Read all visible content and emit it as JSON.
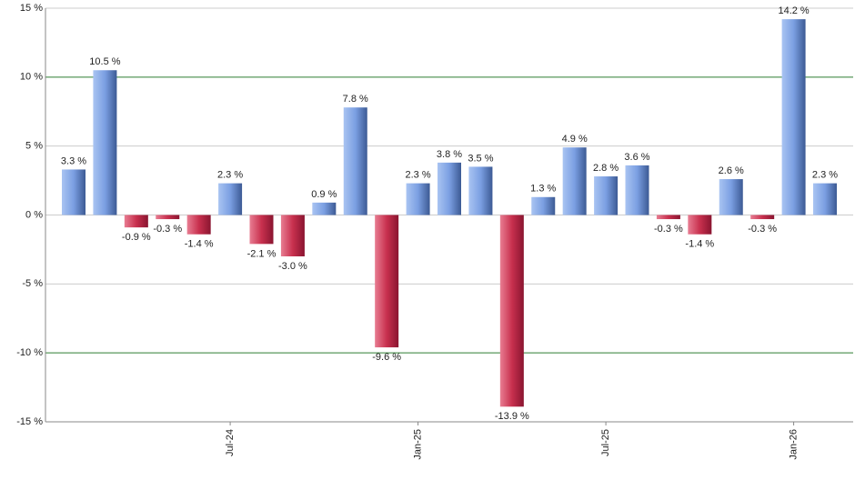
{
  "chart_data": {
    "type": "bar",
    "categories": [
      null,
      null,
      null,
      null,
      null,
      "Jul-24",
      null,
      null,
      null,
      null,
      null,
      "Jan-25",
      null,
      null,
      null,
      null,
      null,
      "Jul-25",
      null,
      null,
      null,
      null,
      null,
      "Jan-26",
      null
    ],
    "values": [
      3.3,
      10.5,
      -0.9,
      -0.3,
      -1.4,
      2.3,
      -2.1,
      -3.0,
      0.9,
      7.8,
      -9.6,
      2.3,
      3.8,
      3.5,
      -13.9,
      1.3,
      4.9,
      2.8,
      3.6,
      -0.3,
      -1.4,
      2.6,
      -0.3,
      14.2,
      2.3
    ],
    "value_labels": [
      "3.3 %",
      "10.5 %",
      "-0.9 %",
      "-0.3 %",
      "-1.4 %",
      "2.3 %",
      "-2.1 %",
      "-3.0 %",
      "0.9 %",
      "7.8 %",
      "-9.6 %",
      "2.3 %",
      "3.8 %",
      "3.5 %",
      "-13.9 %",
      "1.3 %",
      "4.9 %",
      "2.8 %",
      "3.6 %",
      "-0.3 %",
      "-1.4 %",
      "2.6 %",
      "-0.3 %",
      "14.2 %",
      "2.3 %"
    ],
    "positive_color": "#7b9fe2",
    "negative_color": "#c8304e",
    "ylim": [
      -15,
      15
    ],
    "yticks": [
      {
        "value": -15,
        "label": "-15 %"
      },
      {
        "value": -10,
        "label": "-10 %"
      },
      {
        "value": -5,
        "label": "-5 %"
      },
      {
        "value": 0,
        "label": "0 %"
      },
      {
        "value": 5,
        "label": "5 %"
      },
      {
        "value": 10,
        "label": "10 %"
      },
      {
        "value": 15,
        "label": "15 %"
      }
    ],
    "grid": true,
    "grid_colors": [
      "#cccccc",
      "#2e7d32",
      "#cccccc",
      "#cccccc",
      "#cccccc",
      "#2e7d32",
      "#cccccc"
    ]
  }
}
